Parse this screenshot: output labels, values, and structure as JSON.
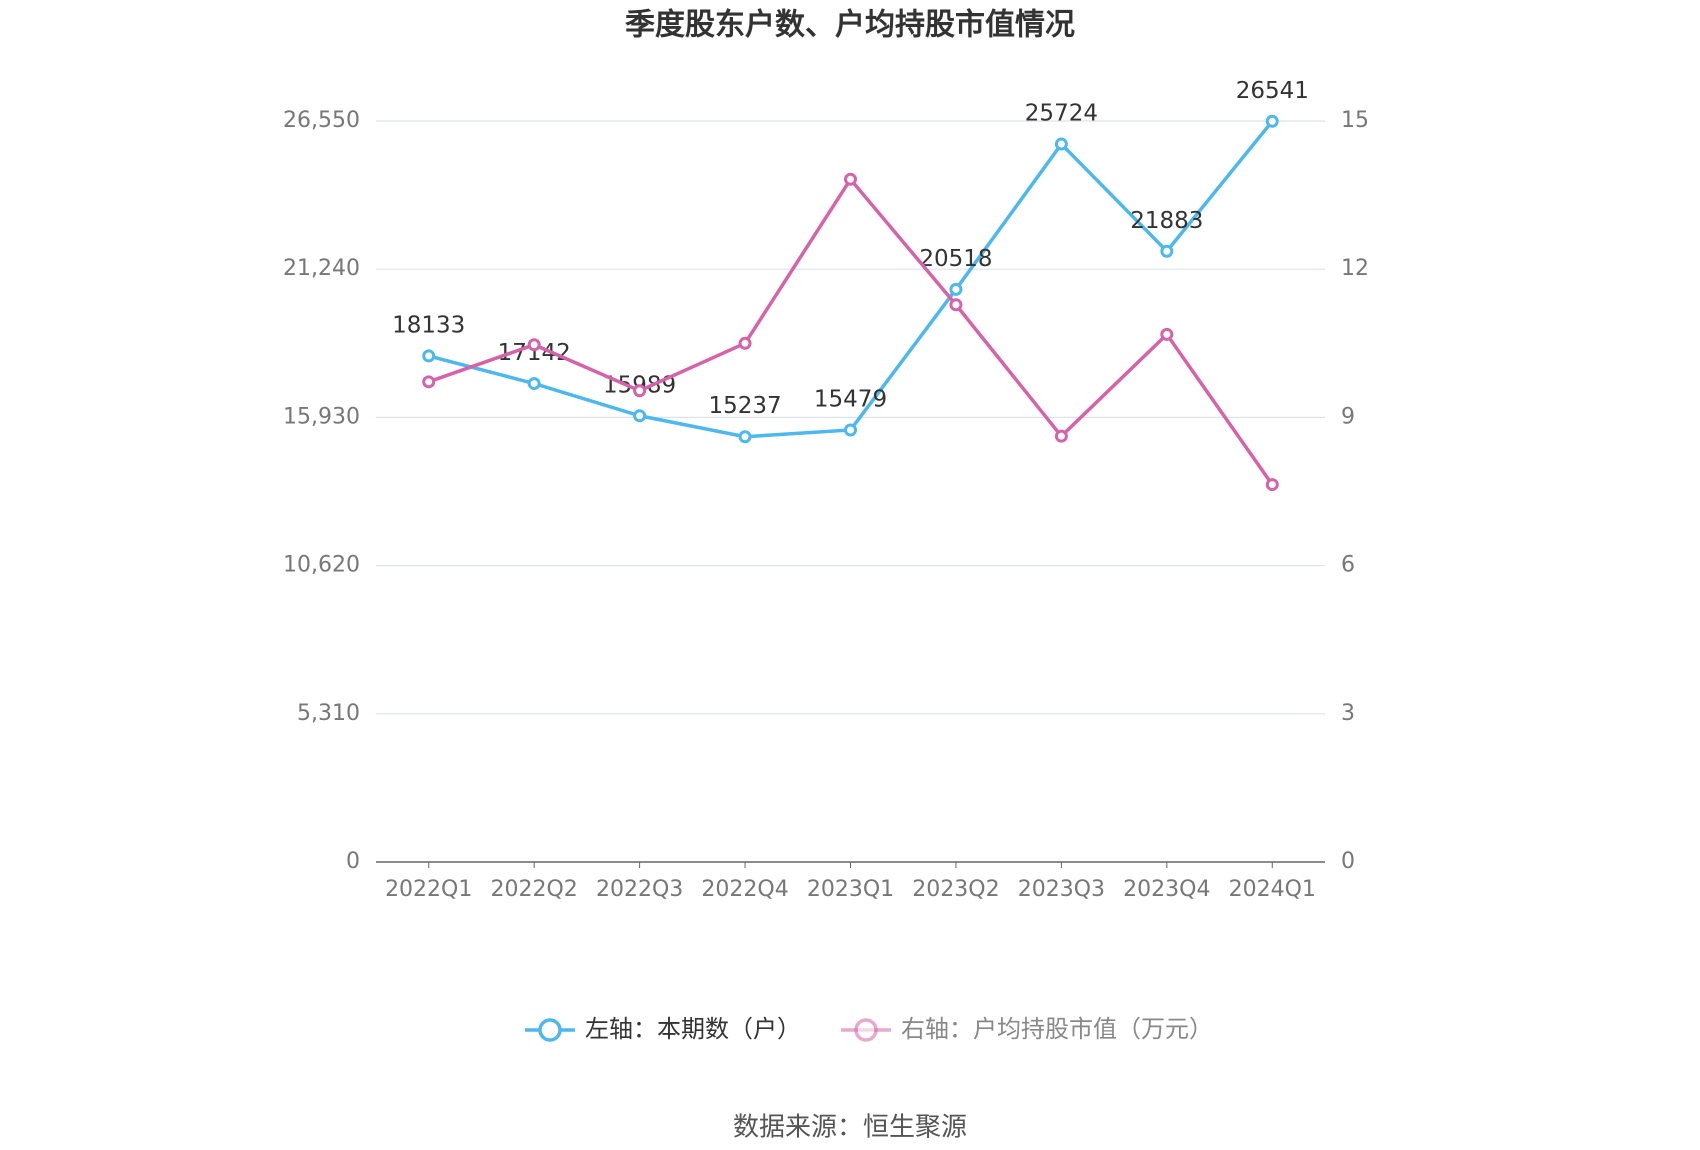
{
  "chart_data": {
    "type": "line",
    "title": "季度股东户数、户均持股市值情况",
    "source": "数据来源：恒生聚源",
    "categories": [
      "2022Q1",
      "2022Q2",
      "2022Q3",
      "2022Q4",
      "2023Q1",
      "2023Q2",
      "2023Q3",
      "2023Q4",
      "2024Q1"
    ],
    "series": [
      {
        "name": "左轴：本期数（户）",
        "color": "#4cb8ee",
        "axis": "y",
        "show_labels": true,
        "values": [
          18133,
          17142,
          15989,
          15237,
          15479,
          20518,
          25724,
          21883,
          26541
        ]
      },
      {
        "name": "右轴：户均持股市值（万元）",
        "color": "#d663a9",
        "axis": "y2",
        "show_labels": false,
        "values": [
          9.72,
          10.47,
          9.54,
          10.5,
          13.82,
          11.28,
          8.62,
          10.68,
          7.64
        ]
      }
    ],
    "ylim": [
      0,
      26550
    ],
    "yticks": [
      0,
      {
        "value": 5310,
        "label": "5,310"
      },
      {
        "value": 10620,
        "label": "10,620"
      },
      {
        "value": 15930,
        "label": "15,930"
      },
      {
        "value": 21240,
        "label": "21,240"
      },
      {
        "value": 26550,
        "label": "26,550"
      }
    ],
    "y2lim": [
      0,
      15
    ],
    "y2ticks": [
      0,
      3,
      6,
      9,
      12,
      15
    ],
    "grid": true
  }
}
